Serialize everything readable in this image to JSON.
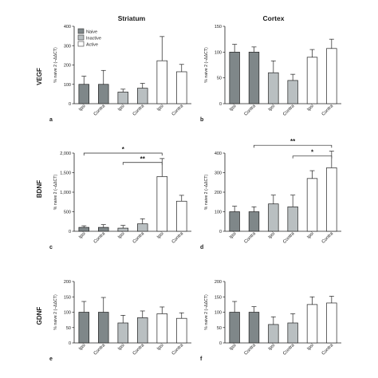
{
  "figure": {
    "column_titles": [
      "Striatum",
      "Cortex"
    ],
    "row_labels": [
      "VEGF",
      "BDNF",
      "GDNF"
    ],
    "legend": [
      {
        "name": "Naive",
        "color": "#7f8789"
      },
      {
        "name": "Inactive",
        "color": "#b9bfc1"
      },
      {
        "name": "Active",
        "color": "#ffffff"
      }
    ]
  },
  "chart_data": [
    {
      "panel": "a",
      "type": "bar",
      "categories": [
        "Ipsi",
        "Contra",
        "Ipsi",
        "Contra",
        "Ipsi",
        "Contra"
      ],
      "groups": [
        "Naive",
        "Naive",
        "Inactive",
        "Inactive",
        "Active",
        "Active"
      ],
      "values": [
        100,
        100,
        60,
        80,
        222,
        165
      ],
      "errors": [
        42,
        72,
        15,
        25,
        125,
        38
      ],
      "ylabel": "% naive 2 (–ΔΔCT)",
      "ylim": [
        0,
        400
      ],
      "yticks": [
        0,
        100,
        200,
        300,
        400
      ],
      "tick_labels": [
        "0",
        "100",
        "200",
        "300",
        "400"
      ],
      "significance": []
    },
    {
      "panel": "b",
      "type": "bar",
      "categories": [
        "Ipsi",
        "Contra",
        "Ipsi",
        "Contra",
        "Ipsi",
        "Contra"
      ],
      "groups": [
        "Naive",
        "Naive",
        "Inactive",
        "Inactive",
        "Active",
        "Active"
      ],
      "values": [
        100,
        100,
        60,
        45,
        90,
        107
      ],
      "errors": [
        15,
        10,
        23,
        12,
        15,
        18
      ],
      "ylabel": "% naive 2 (–ΔΔCT)",
      "ylim": [
        0,
        150
      ],
      "yticks": [
        0,
        50,
        100,
        150
      ],
      "tick_labels": [
        "0",
        "50",
        "100",
        "150"
      ],
      "significance": []
    },
    {
      "panel": "c",
      "type": "bar",
      "categories": [
        "Ipsi",
        "Contra",
        "Ipsi",
        "Contra",
        "Ipsi",
        "Contra"
      ],
      "groups": [
        "Naive",
        "Naive",
        "Inactive",
        "Inactive",
        "Active",
        "Active"
      ],
      "values": [
        100,
        100,
        80,
        190,
        1400,
        770
      ],
      "errors": [
        40,
        70,
        70,
        130,
        460,
        150
      ],
      "ylabel": "% naive 2 (–ΔΔCT)",
      "ylim": [
        0,
        2000
      ],
      "yticks": [
        0,
        500,
        1000,
        1500,
        2000
      ],
      "tick_labels": [
        "0",
        "500",
        "1,000",
        "1,500",
        "2,000"
      ],
      "significance": [
        {
          "from": 0,
          "to": 4,
          "label": "*",
          "y": 2000
        },
        {
          "from": 2,
          "to": 4,
          "label": "**",
          "y": 1760
        }
      ]
    },
    {
      "panel": "d",
      "type": "bar",
      "categories": [
        "Ipsi",
        "Contra",
        "Ipsi",
        "Contra",
        "Ipsi",
        "Contra"
      ],
      "groups": [
        "Naive",
        "Naive",
        "Inactive",
        "Inactive",
        "Active",
        "Active"
      ],
      "values": [
        100,
        100,
        140,
        125,
        270,
        325
      ],
      "errors": [
        28,
        25,
        45,
        60,
        40,
        85
      ],
      "ylabel": "% naive 2 (–ΔΔCT)",
      "ylim": [
        0,
        400
      ],
      "yticks": [
        0,
        100,
        200,
        300,
        400
      ],
      "tick_labels": [
        "0",
        "100",
        "200",
        "300",
        "400"
      ],
      "significance": [
        {
          "from": 1,
          "to": 5,
          "label": "**",
          "y": 440
        },
        {
          "from": 3,
          "to": 5,
          "label": "*",
          "y": 385
        }
      ]
    },
    {
      "panel": "e",
      "type": "bar",
      "categories": [
        "Ipsi",
        "Contra",
        "Ipsi",
        "Contra",
        "Ipsi",
        "Contra"
      ],
      "groups": [
        "Naive",
        "Naive",
        "Inactive",
        "Inactive",
        "Active",
        "Active"
      ],
      "values": [
        100,
        100,
        65,
        82,
        95,
        80
      ],
      "errors": [
        35,
        48,
        25,
        22,
        22,
        18
      ],
      "ylabel": "% naive 2 (–ΔΔCT)",
      "ylim": [
        0,
        200
      ],
      "yticks": [
        0,
        50,
        100,
        150,
        200
      ],
      "tick_labels": [
        "0",
        "50",
        "100",
        "150",
        "200"
      ],
      "significance": []
    },
    {
      "panel": "f",
      "type": "bar",
      "categories": [
        "Ipsi",
        "Contra",
        "Ipsi",
        "Contra",
        "Ipsi",
        "Contra"
      ],
      "groups": [
        "Naive",
        "Naive",
        "Inactive",
        "Inactive",
        "Active",
        "Active"
      ],
      "values": [
        100,
        100,
        60,
        65,
        125,
        130
      ],
      "errors": [
        35,
        18,
        25,
        30,
        25,
        22
      ],
      "ylabel": "% naive 2 (–ΔΔCT)",
      "ylim": [
        0,
        200
      ],
      "yticks": [
        0,
        50,
        100,
        150,
        200
      ],
      "tick_labels": [
        "0",
        "50",
        "100",
        "150",
        "200"
      ],
      "significance": []
    }
  ]
}
